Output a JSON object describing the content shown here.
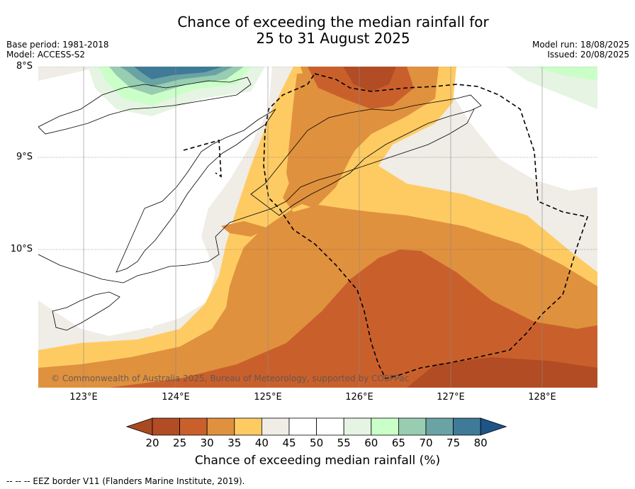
{
  "title_line1": "Chance of exceeding the median rainfall for",
  "title_line2": "25 to 31 August 2025",
  "base_period": "Base period: 1981-2018",
  "model": "Model: ACCESS-S2",
  "model_run": "Model run: 18/08/2025",
  "issued": "Issued: 20/08/2025",
  "lat_labels": [
    "8°S",
    "9°S",
    "10°S"
  ],
  "lon_labels": [
    "123°E",
    "124°E",
    "125°E",
    "126°E",
    "127°E",
    "128°E"
  ],
  "copyright": "© Commonwealth of Australia 2025, Bureau of Meteorology, supported by COSPPac",
  "colorbar": {
    "title": "Chance of exceeding median rainfall (%)",
    "ticks": [
      "20",
      "25",
      "30",
      "35",
      "40",
      "45",
      "50",
      "55",
      "60",
      "65",
      "70",
      "75",
      "80"
    ],
    "colors": [
      "#a84a22",
      "#b24c24",
      "#c9602c",
      "#e0913e",
      "#fecb63",
      "#f0ece6",
      "#ffffff",
      "#ffffff",
      "#e6f4e3",
      "#caffc8",
      "#98cdb2",
      "#6aa3a3",
      "#3f7a98",
      "#1e5488"
    ]
  },
  "footnote": "--  --  -- EEZ border V11 (Flanders Marine Institute, 2019).",
  "colors": {
    "below_20": "#a84a22",
    "c20_25": "#b24c24",
    "c25_30": "#c9602c",
    "c30_35": "#e0913e",
    "c35_40": "#fecb63",
    "c40_45": "#f0ece6",
    "c55_60": "#e6f4e3",
    "c60_65": "#caffc8",
    "c65_70": "#98cdb2",
    "c70_75": "#6aa3a3",
    "c75_80": "#3f7a98",
    "above_80": "#1e5488"
  }
}
